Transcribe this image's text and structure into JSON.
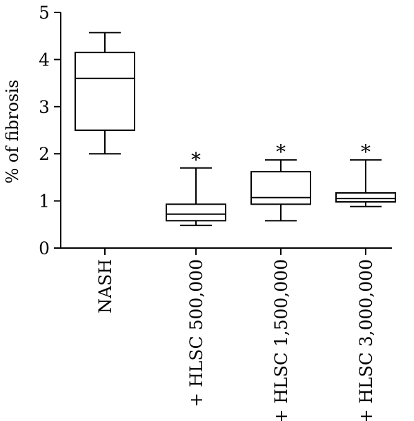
{
  "chart_data": {
    "type": "box",
    "ylabel": "% of fibrosis",
    "xlabel": "",
    "ylim": [
      0,
      5
    ],
    "yticks": [
      "0",
      "1",
      "2",
      "3",
      "4",
      "5"
    ],
    "categories": [
      "NASH",
      "+ HLSC 500,000",
      "+ HLSC 1,500,000",
      "+ HLSC 3,000,000"
    ],
    "boxes": [
      {
        "min": 2.0,
        "q1": 2.5,
        "median": 3.6,
        "q3": 4.15,
        "max": 4.57,
        "annotation": ""
      },
      {
        "min": 0.48,
        "q1": 0.58,
        "median": 0.72,
        "q3": 0.93,
        "max": 1.7,
        "annotation": "*"
      },
      {
        "min": 0.58,
        "q1": 0.93,
        "median": 1.07,
        "q3": 1.62,
        "max": 1.87,
        "annotation": "*"
      },
      {
        "min": 0.88,
        "q1": 0.98,
        "median": 1.05,
        "q3": 1.17,
        "max": 1.87,
        "annotation": "*"
      }
    ],
    "grid": false,
    "legend": "none"
  }
}
